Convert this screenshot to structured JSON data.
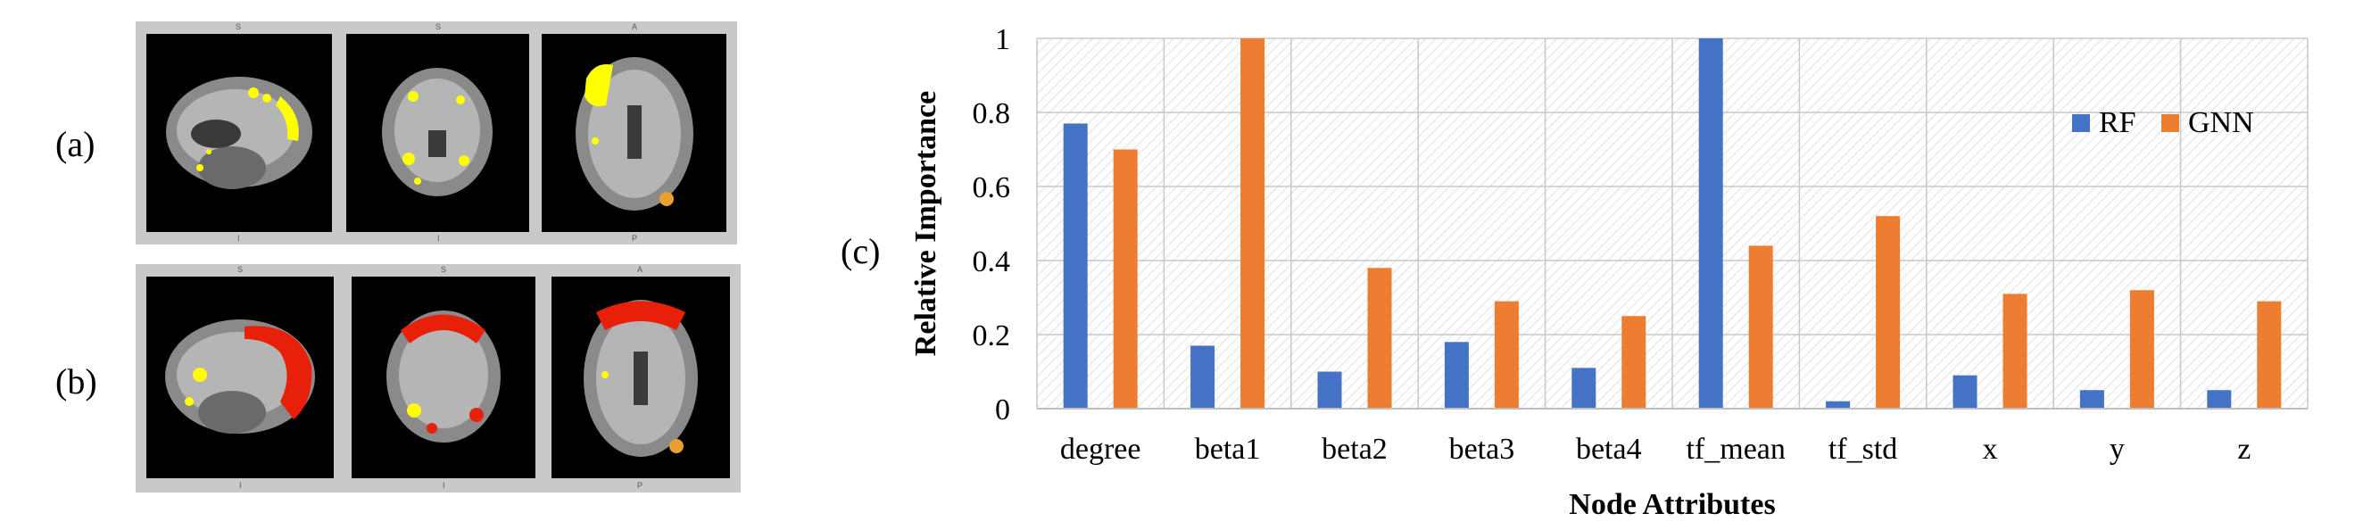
{
  "panels": {
    "a": {
      "label": "(a)",
      "orientation_tops": [
        "S",
        "S",
        "A"
      ],
      "orientation_bottoms": [
        "I",
        "I",
        "P"
      ]
    },
    "b": {
      "label": "(b)",
      "orientation_tops": [
        "S",
        "S",
        "A"
      ],
      "orientation_bottoms": [
        "I",
        "I",
        "P"
      ]
    },
    "c": {
      "label": "(c)"
    }
  },
  "colors": {
    "rf": "#4472C4",
    "gnn": "#ED7D31",
    "highlight_yellow": "#FFFF00",
    "highlight_red": "#E8200A"
  },
  "chart_data": {
    "type": "bar",
    "title": "",
    "xlabel": "Node Attributes",
    "ylabel": "Relative  Importance",
    "ylim": [
      0,
      1
    ],
    "yticks": [
      "0",
      "0.2",
      "0.4",
      "0.6",
      "0.8",
      "1"
    ],
    "categories": [
      "degree",
      "beta1",
      "beta2",
      "beta3",
      "beta4",
      "tf_mean",
      "tf_std",
      "x",
      "y",
      "z"
    ],
    "series": [
      {
        "name": "RF",
        "color": "#4472C4",
        "values": [
          0.77,
          0.17,
          0.1,
          0.18,
          0.11,
          1.0,
          0.02,
          0.09,
          0.05,
          0.05
        ]
      },
      {
        "name": "GNN",
        "color": "#ED7D31",
        "values": [
          0.7,
          1.0,
          0.38,
          0.29,
          0.25,
          0.44,
          0.52,
          0.31,
          0.32,
          0.29
        ]
      }
    ],
    "legend_position": "top-right",
    "grid": "hatched-background"
  }
}
